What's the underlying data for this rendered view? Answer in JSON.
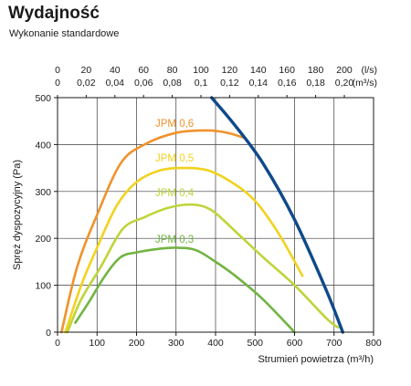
{
  "header": {
    "title": "Wydajność",
    "subtitle": "Wykonanie standardowe"
  },
  "chart_data": {
    "type": "line",
    "title": "Wydajność",
    "subtitle": "Wykonanie standardowe",
    "xlabel": "Strumień powietrza (m³/h)",
    "ylabel": "Spręż dyspozycyjny (Pa)",
    "xlim": [
      0,
      800
    ],
    "ylim": [
      0,
      500
    ],
    "x_ticks": [
      "0",
      "100",
      "200",
      "300",
      "400",
      "500",
      "600",
      "700",
      "800"
    ],
    "y_ticks": [
      "0",
      "100",
      "200",
      "300",
      "400",
      "500"
    ],
    "grid": true,
    "top_axes": [
      {
        "unit": "(l/s)",
        "ticks": [
          "0",
          "20",
          "40",
          "60",
          "80",
          "100",
          "120",
          "140",
          "160",
          "180",
          "200"
        ]
      },
      {
        "unit": "(m³/s)",
        "ticks": [
          "0",
          "0,02",
          "0,04",
          "0,06",
          "0,08",
          "0,1",
          "0,12",
          "0,14",
          "0,16",
          "0,18",
          "0,20"
        ]
      }
    ],
    "series": [
      {
        "name": "JPM 0,6",
        "color": "#f0922b",
        "x": [
          10,
          50,
          100,
          160,
          220,
          300,
          380,
          430,
          470
        ],
        "y": [
          0,
          140,
          250,
          360,
          400,
          425,
          430,
          425,
          415
        ]
      },
      {
        "name": "JPM 0,5",
        "color": "#f2d21e",
        "x": [
          20,
          60,
          100,
          150,
          200,
          260,
          320,
          380,
          440,
          500,
          560,
          620
        ],
        "y": [
          0,
          100,
          180,
          270,
          320,
          345,
          350,
          345,
          320,
          280,
          210,
          120
        ]
      },
      {
        "name": "JPM 0,4",
        "color": "#c0d43a",
        "x": [
          25,
          60,
          110,
          165,
          220,
          280,
          340,
          390,
          450,
          520,
          600,
          680,
          710
        ],
        "y": [
          0,
          70,
          140,
          220,
          245,
          265,
          272,
          260,
          215,
          160,
          100,
          30,
          10
        ]
      },
      {
        "name": "JPM 0,3",
        "color": "#72b442",
        "x": [
          45,
          80,
          120,
          160,
          200,
          250,
          300,
          350,
          400,
          450,
          520,
          600
        ],
        "y": [
          20,
          65,
          120,
          160,
          170,
          177,
          180,
          175,
          150,
          120,
          70,
          0
        ]
      },
      {
        "name": "",
        "color": "#0f4a8a",
        "x": [
          390,
          450,
          520,
          600,
          680,
          722
        ],
        "y": [
          500,
          440,
          360,
          240,
          90,
          0
        ]
      }
    ]
  }
}
